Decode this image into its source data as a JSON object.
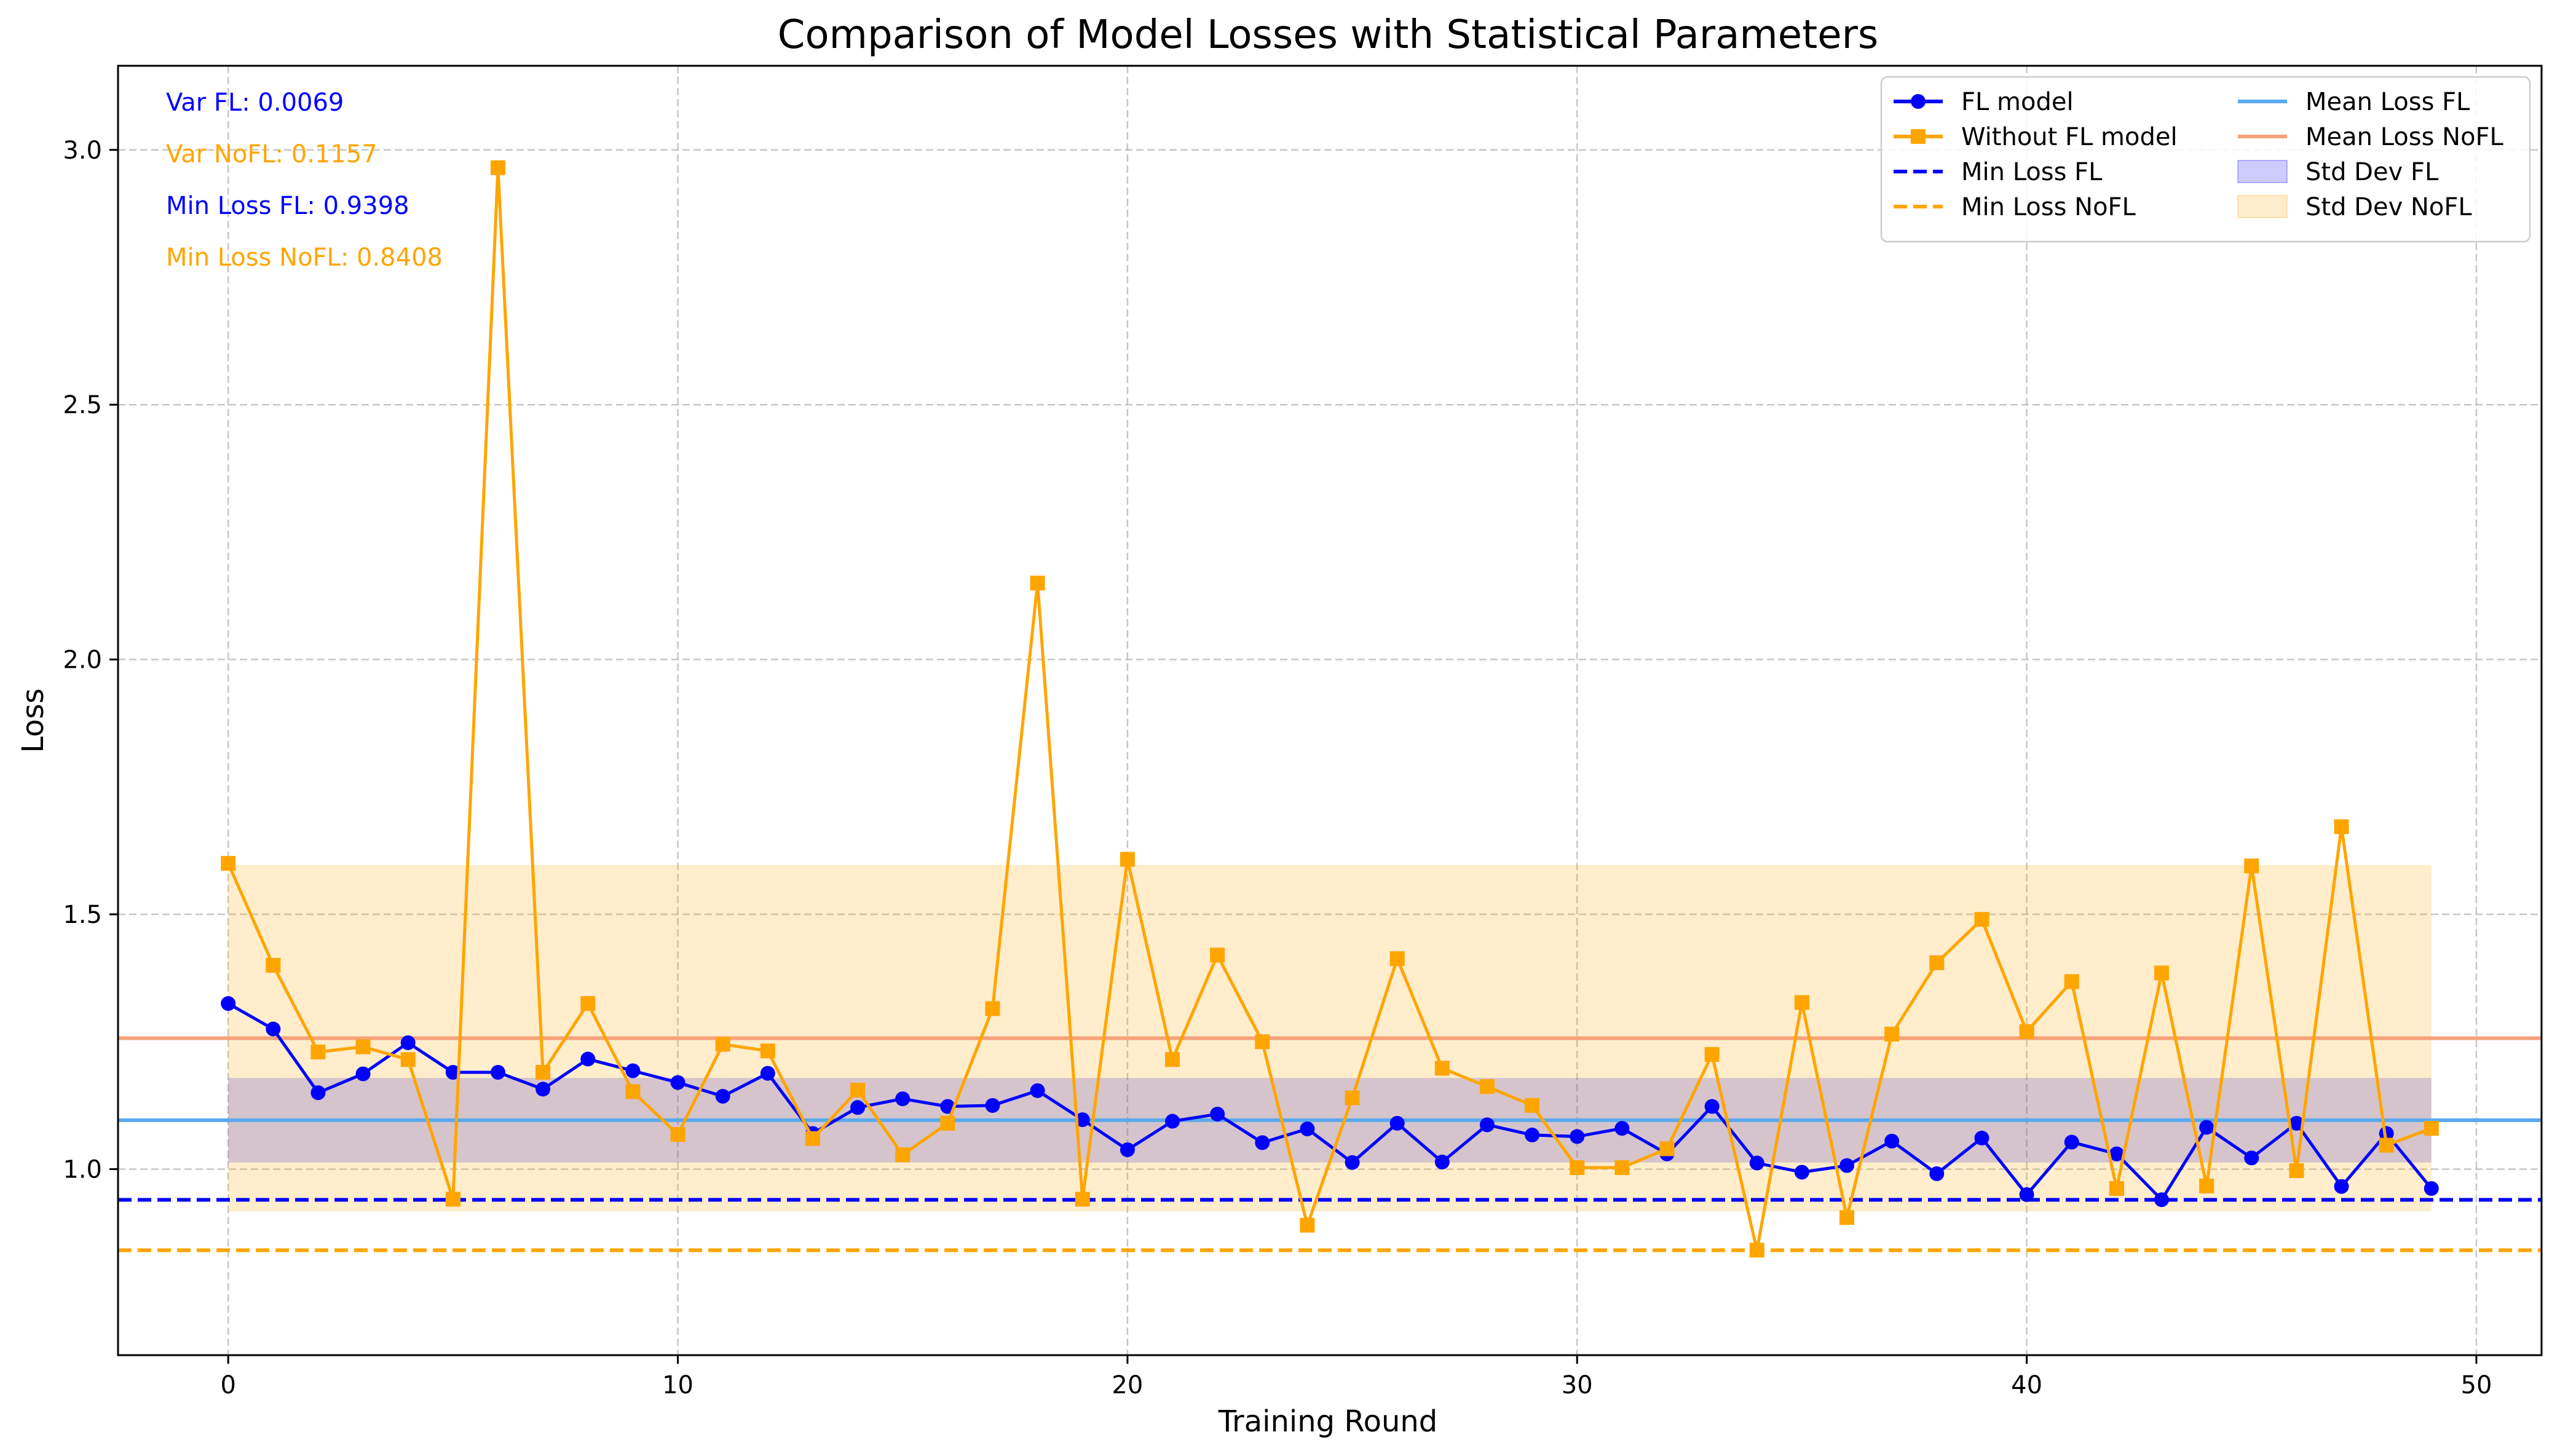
{
  "chart_data": {
    "type": "line",
    "title": "Comparison of Model Losses with Statistical Parameters",
    "xlabel": "Training Round",
    "ylabel": "Loss",
    "xlim": [
      -2.45,
      51.45
    ],
    "ylim": [
      0.635,
      3.165
    ],
    "x_ticks": [
      0,
      10,
      20,
      30,
      40,
      50
    ],
    "y_ticks": [
      1.0,
      1.5,
      2.0,
      2.5,
      3.0
    ],
    "x_tick_labels": [
      "0",
      "10",
      "20",
      "30",
      "40",
      "50"
    ],
    "y_tick_labels": [
      "1.0",
      "1.5",
      "2.0",
      "2.5",
      "3.0"
    ],
    "grid": true,
    "legend_position": "top-right",
    "x": [
      0,
      1,
      2,
      3,
      4,
      5,
      6,
      7,
      8,
      9,
      10,
      11,
      12,
      13,
      14,
      15,
      16,
      17,
      18,
      19,
      20,
      21,
      22,
      23,
      24,
      25,
      26,
      27,
      28,
      29,
      30,
      31,
      32,
      33,
      34,
      35,
      36,
      37,
      38,
      39,
      40,
      41,
      42,
      43,
      44,
      45,
      46,
      47,
      48,
      49
    ],
    "series": [
      {
        "name": "FL model",
        "color": "#0000ff",
        "marker": "circle",
        "values": [
          1.325,
          1.275,
          1.15,
          1.187,
          1.248,
          1.19,
          1.19,
          1.157,
          1.216,
          1.193,
          1.17,
          1.143,
          1.188,
          1.07,
          1.121,
          1.138,
          1.123,
          1.125,
          1.154,
          1.097,
          1.038,
          1.094,
          1.108,
          1.052,
          1.079,
          1.013,
          1.09,
          1.014,
          1.087,
          1.067,
          1.064,
          1.08,
          1.03,
          1.123,
          1.012,
          0.994,
          1.007,
          1.055,
          0.991,
          1.061,
          0.95,
          1.053,
          1.03,
          0.94,
          1.082,
          1.022,
          1.09,
          0.966,
          1.07,
          0.962
        ]
      },
      {
        "name": "Without FL model",
        "color": "#ffa500",
        "marker": "square",
        "values": [
          1.6,
          1.4,
          1.23,
          1.24,
          1.215,
          0.941,
          2.965,
          1.19,
          1.325,
          1.152,
          1.068,
          1.245,
          1.232,
          1.06,
          1.155,
          1.028,
          1.09,
          1.315,
          2.15,
          0.941,
          1.608,
          1.215,
          1.42,
          1.25,
          0.89,
          1.14,
          1.413,
          1.198,
          1.162,
          1.125,
          1.003,
          1.003,
          1.04,
          1.225,
          0.841,
          1.327,
          0.905,
          1.265,
          1.405,
          1.49,
          1.27,
          1.368,
          0.962,
          1.385,
          0.967,
          1.595,
          0.997,
          1.672,
          1.047,
          1.08
        ]
      }
    ],
    "reference_lines": [
      {
        "name": "Min Loss FL",
        "value": 0.9398,
        "color": "#0000ff",
        "style": "dashed"
      },
      {
        "name": "Min Loss NoFL",
        "value": 0.8408,
        "color": "#ffa500",
        "style": "dashed"
      },
      {
        "name": "Mean Loss FL",
        "value": 1.096,
        "color": "#5aaaf0",
        "style": "solid"
      },
      {
        "name": "Mean Loss NoFL",
        "value": 1.257,
        "color": "#f5a27a",
        "style": "solid"
      }
    ],
    "bands": [
      {
        "name": "Std Dev FL",
        "lower": 1.013,
        "upper": 1.179,
        "x_range": [
          0,
          49
        ],
        "color": "#0000ff",
        "alpha": 0.2
      },
      {
        "name": "Std Dev NoFL",
        "lower": 0.917,
        "upper": 1.597,
        "x_range": [
          0,
          49
        ],
        "color": "#ffa500",
        "alpha": 0.2
      }
    ],
    "annotations": [
      {
        "text": "Var FL: 0.0069",
        "color": "#0000ff"
      },
      {
        "text": "Var NoFL: 0.1157",
        "color": "#ffa500"
      },
      {
        "text": "Min Loss FL: 0.9398",
        "color": "#0000ff"
      },
      {
        "text": "Min Loss NoFL: 0.8408",
        "color": "#ffa500"
      }
    ],
    "legend": [
      {
        "label": "FL model",
        "kind": "line-circle",
        "color": "#0000ff"
      },
      {
        "label": "Without FL model",
        "kind": "line-square",
        "color": "#ffa500"
      },
      {
        "label": "Min Loss FL",
        "kind": "dashed",
        "color": "#0000ff"
      },
      {
        "label": "Min Loss NoFL",
        "kind": "dashed",
        "color": "#ffa500"
      },
      {
        "label": "Mean Loss FL",
        "kind": "solid",
        "color": "#5aaaf0"
      },
      {
        "label": "Mean Loss NoFL",
        "kind": "solid",
        "color": "#f5a27a"
      },
      {
        "label": "Std Dev FL",
        "kind": "patch",
        "color": "#0000ff"
      },
      {
        "label": "Std Dev NoFL",
        "kind": "patch",
        "color": "#ffa500"
      }
    ]
  }
}
